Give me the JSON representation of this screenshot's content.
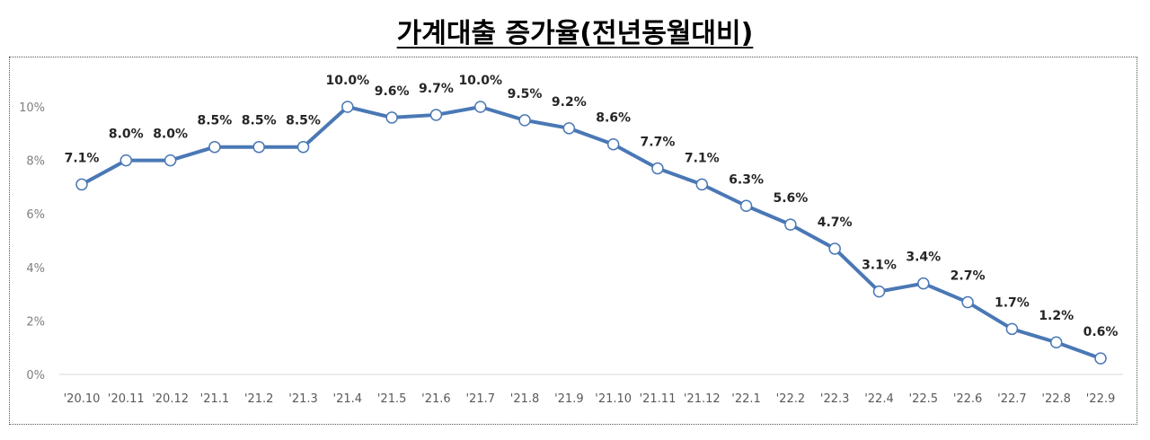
{
  "title": "가계대출  증가율(전년동월대비)",
  "chart_data": {
    "type": "line",
    "title": "가계대출  증가율(전년동월대비)",
    "xlabel": "",
    "ylabel": "",
    "ylim": [
      0,
      10
    ],
    "yticks": [
      "0%",
      "2%",
      "4%",
      "6%",
      "8%",
      "10%"
    ],
    "grid": false,
    "legend": "none",
    "line_color": "#4a78b5",
    "categories": [
      "'20.10",
      "'20.11",
      "'20.12",
      "'21.1",
      "'21.2",
      "'21.3",
      "'21.4",
      "'21.5",
      "'21.6",
      "'21.7",
      "'21.8",
      "'21.9",
      "'21.10",
      "'21.11",
      "'21.12",
      "'22.1",
      "'22.2",
      "'22.3",
      "'22.4",
      "'22.5",
      "'22.6",
      "'22.7",
      "'22.8",
      "'22.9"
    ],
    "values": [
      7.1,
      8.0,
      8.0,
      8.5,
      8.5,
      8.5,
      10.0,
      9.6,
      9.7,
      10.0,
      9.5,
      9.2,
      8.6,
      7.7,
      7.1,
      6.3,
      5.6,
      4.7,
      3.1,
      3.4,
      2.7,
      1.7,
      1.2,
      0.6
    ],
    "data_labels": [
      "7.1%",
      "8.0%",
      "8.0%",
      "8.5%",
      "8.5%",
      "8.5%",
      "10.0%",
      "9.6%",
      "9.7%",
      "10.0%",
      "9.5%",
      "9.2%",
      "8.6%",
      "7.7%",
      "7.1%",
      "6.3%",
      "5.6%",
      "4.7%",
      "3.1%",
      "3.4%",
      "2.7%",
      "1.7%",
      "1.2%",
      "0.6%"
    ]
  }
}
